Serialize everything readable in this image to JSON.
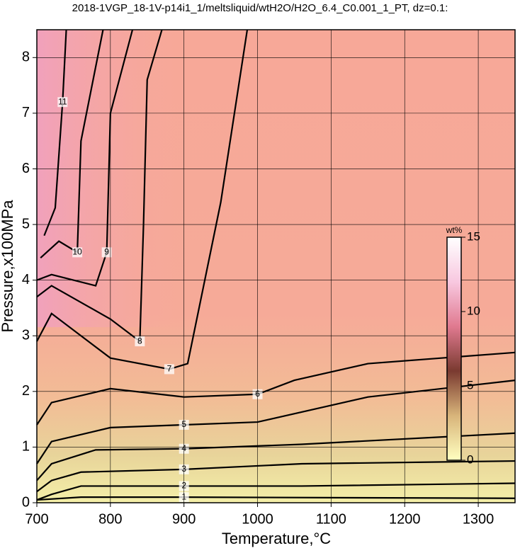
{
  "chart_data": {
    "type": "contour",
    "title": "2018-1VGP_18-1V-p14i1_1/meltsliquid/wtH2O/H2O_6.4_C0.001_1_PT, dz=0.1:",
    "x_label": "Temperature,°C",
    "y_label": "Pressure,x100MPa",
    "xlim": [
      700,
      1350
    ],
    "ylim": [
      0,
      8.5
    ],
    "xticks": [
      700,
      800,
      900,
      1000,
      1100,
      1200,
      1300
    ],
    "yticks": [
      0,
      1,
      2,
      3,
      4,
      5,
      6,
      7,
      8
    ],
    "grid": true,
    "line_color": "#000000",
    "contours": [
      {
        "level": 1,
        "x": [
          700,
          760,
          900,
          1350
        ],
        "y": [
          0.05,
          0.1,
          0.1,
          0.08
        ]
      },
      {
        "level": 2,
        "x": [
          700,
          720,
          760,
          900,
          1060,
          1350
        ],
        "y": [
          0.05,
          0.15,
          0.3,
          0.3,
          0.3,
          0.35
        ]
      },
      {
        "level": 3,
        "x": [
          700,
          720,
          760,
          900,
          1060,
          1350
        ],
        "y": [
          0.2,
          0.4,
          0.55,
          0.6,
          0.7,
          0.75
        ]
      },
      {
        "level": 4,
        "x": [
          700,
          720,
          780,
          900,
          1060,
          1350
        ],
        "y": [
          0.4,
          0.7,
          0.95,
          0.97,
          1.05,
          1.25
        ]
      },
      {
        "level": 5,
        "x": [
          700,
          720,
          800,
          900,
          1000,
          1150,
          1350
        ],
        "y": [
          0.7,
          1.1,
          1.35,
          1.4,
          1.45,
          1.9,
          2.2
        ]
      },
      {
        "level": 6,
        "x": [
          700,
          720,
          800,
          900,
          1000,
          1050,
          1150,
          1350
        ],
        "y": [
          1.4,
          1.8,
          2.05,
          1.9,
          1.95,
          2.2,
          2.5,
          2.7
        ]
      },
      {
        "level": 7,
        "x": [
          700,
          720,
          800,
          880,
          905,
          950,
          986
        ],
        "y": [
          2.9,
          3.4,
          2.6,
          2.4,
          2.5,
          5.4,
          8.5
        ]
      },
      {
        "level": 8,
        "x": [
          700,
          720,
          800,
          840,
          845,
          850,
          870
        ],
        "y": [
          3.7,
          3.9,
          3.3,
          2.9,
          5.0,
          7.6,
          8.5
        ]
      },
      {
        "level": 9,
        "x": [
          700,
          720,
          780,
          795,
          800,
          830
        ],
        "y": [
          4.0,
          4.1,
          3.9,
          4.5,
          7.0,
          8.5
        ]
      },
      {
        "level": 10,
        "x": [
          705,
          730,
          755,
          760,
          790
        ],
        "y": [
          4.4,
          4.7,
          4.5,
          6.5,
          8.5
        ]
      },
      {
        "level": 11,
        "x": [
          710,
          725,
          735,
          740
        ],
        "y": [
          4.8,
          5.3,
          7.2,
          8.5
        ]
      }
    ],
    "colorbar": {
      "label": "wt%",
      "range": [
        0,
        15
      ],
      "ticks": [
        0,
        5,
        10,
        15
      ],
      "colors": [
        "#ffffc0",
        "#d8b47a",
        "#7a3a30",
        "#e07a90",
        "#f8c8e0",
        "#ffffff"
      ]
    }
  }
}
